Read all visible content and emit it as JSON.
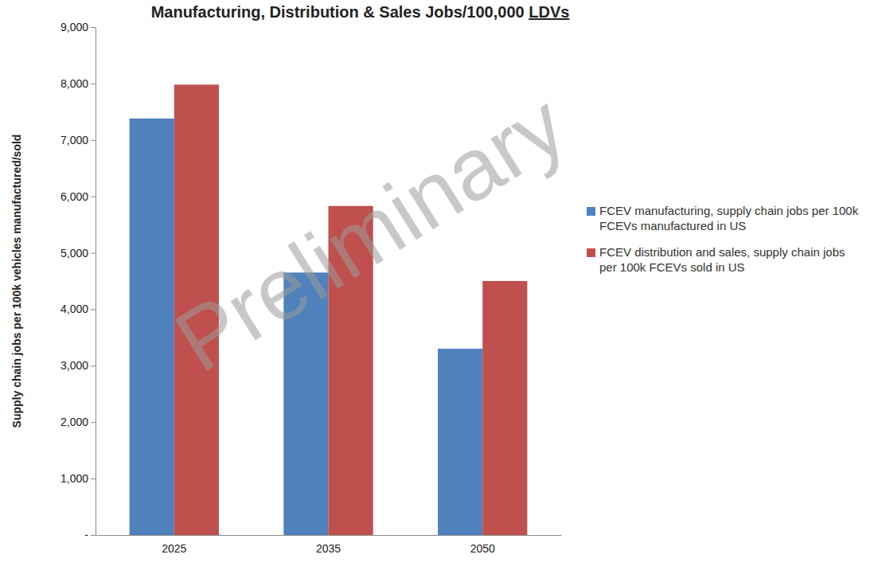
{
  "chart_data": {
    "type": "bar",
    "title": "Manufacturing, Distribution & Sales Jobs/100,000 LDVs",
    "y_label": "Supply chain jobs per 100k vehicles manufactured/sold",
    "categories": [
      "2025",
      "2035",
      "2050"
    ],
    "series": [
      {
        "name": "FCEV manufacturing, supply chain jobs per 100k FCEVs manufactured in US",
        "color": "#4f81bd",
        "values": [
          7380,
          4650,
          3300
        ]
      },
      {
        "name": "FCEV distribution and sales, supply chain jobs per 100k FCEVs sold in US",
        "color": "#c0504d",
        "values": [
          7980,
          5830,
          4500
        ]
      }
    ],
    "ylim": [
      0,
      9000
    ],
    "yticks": [
      {
        "value": 0,
        "label": "-"
      },
      {
        "value": 1000,
        "label": "1,000"
      },
      {
        "value": 2000,
        "label": "2,000"
      },
      {
        "value": 3000,
        "label": "3,000"
      },
      {
        "value": 4000,
        "label": "4,000"
      },
      {
        "value": 5000,
        "label": "5,000"
      },
      {
        "value": 6000,
        "label": "6,000"
      },
      {
        "value": 7000,
        "label": "7,000"
      },
      {
        "value": 8000,
        "label": "8,000"
      },
      {
        "value": 9000,
        "label": "9,000"
      }
    ],
    "grid": false,
    "legend": "right",
    "annotations": [
      "Preliminary"
    ]
  }
}
